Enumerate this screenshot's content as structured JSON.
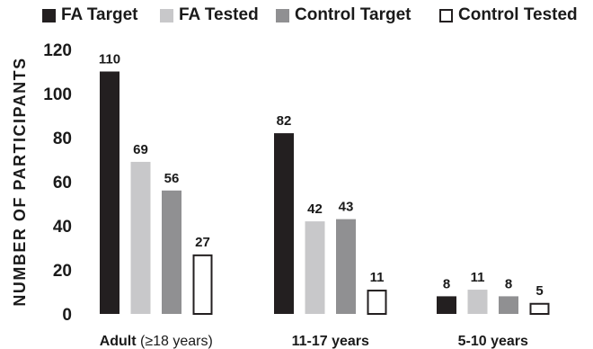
{
  "chart_data": {
    "type": "bar",
    "ylabel": "NUMBER OF PARTICIPANTS",
    "xlabel": "",
    "ylim": [
      0,
      120
    ],
    "yticks": [
      "0",
      "20",
      "40",
      "60",
      "80",
      "100",
      "120"
    ],
    "grid": false,
    "legend_position": "top",
    "categories": [
      {
        "main": "Adult",
        "suffix": " (≥18 years)"
      },
      {
        "main": "11-17 years",
        "suffix": ""
      },
      {
        "main": "5-10 years",
        "suffix": ""
      }
    ],
    "series": [
      {
        "name": "FA Target",
        "values": [
          110,
          82,
          8
        ],
        "fill": "#231f20",
        "stroke": "#231f20"
      },
      {
        "name": "FA Tested",
        "values": [
          69,
          42,
          11
        ],
        "fill": "#c8c8ca",
        "stroke": "#c8c8ca"
      },
      {
        "name": "Control Target",
        "values": [
          56,
          43,
          8
        ],
        "fill": "#909092",
        "stroke": "#909092"
      },
      {
        "name": "Control Tested",
        "values": [
          27,
          11,
          5
        ],
        "fill": "#ffffff",
        "stroke": "#231f20"
      }
    ]
  }
}
